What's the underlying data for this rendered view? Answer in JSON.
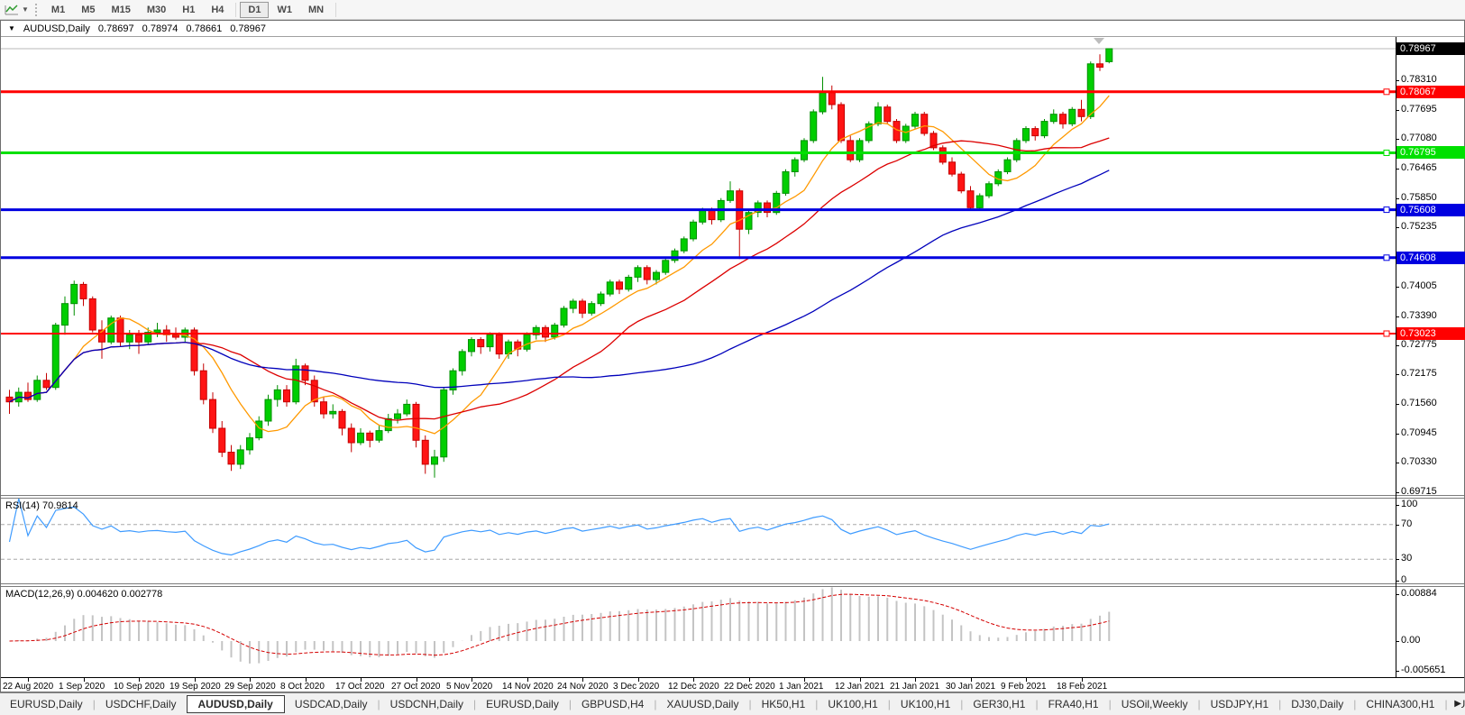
{
  "toolbar": {
    "chart_type_icon": "indicator-chart-icon",
    "dropdown_icon": "chevron-down-icon",
    "timeframes": [
      "M1",
      "M5",
      "M15",
      "M30",
      "H1",
      "H4",
      "D1",
      "W1",
      "MN"
    ],
    "active_timeframe": "D1"
  },
  "chart_header": {
    "collapse_icon": "triangle-down",
    "symbol": "AUDUSD,Daily",
    "open": "0.78697",
    "high": "0.78974",
    "low": "0.78661",
    "close": "0.78967"
  },
  "chart_data": {
    "type": "candlestick",
    "symbol": "AUDUSD",
    "timeframe": "Daily",
    "bull_color": "#00CE00",
    "bear_color": "#FF1414",
    "current_price": "0.78967",
    "current_price_line_color": "#b9b9b9",
    "price_range": {
      "top": 0.79211,
      "bottom": 0.6962
    },
    "y_ticks": [
      "0.78310",
      "0.77695",
      "0.77080",
      "0.76465",
      "0.75850",
      "0.75235",
      "0.74005",
      "0.73390",
      "0.72775",
      "0.72175",
      "0.71560",
      "0.70945",
      "0.70330",
      "0.69715"
    ],
    "levels": [
      {
        "label": "0.78067",
        "price": 0.78067,
        "color": "#FF0000",
        "width": 3
      },
      {
        "label": "0.76795",
        "price": 0.76795,
        "color": "#00E000",
        "width": 3
      },
      {
        "label": "0.75608",
        "price": 0.75608,
        "color": "#0000E0",
        "width": 3
      },
      {
        "label": "0.74608",
        "price": 0.74608,
        "color": "#0000E0",
        "width": 3
      },
      {
        "label": "0.73023",
        "price": 0.73023,
        "color": "#FF0000",
        "width": 2
      }
    ],
    "moving_averages": [
      {
        "name": "fast-ma",
        "period": 8,
        "color": "#FF9900"
      },
      {
        "name": "mid-ma",
        "period": 21,
        "color": "#DC0000"
      },
      {
        "name": "slow-ma",
        "period": 55,
        "color": "#0000BB"
      }
    ],
    "x_labels": [
      "22 Aug 2020",
      "1 Sep 2020",
      "10 Sep 2020",
      "19 Sep 2020",
      "29 Sep 2020",
      "8 Oct 2020",
      "17 Oct 2020",
      "27 Oct 2020",
      "5 Nov 2020",
      "14 Nov 2020",
      "24 Nov 2020",
      "3 Dec 2020",
      "12 Dec 2020",
      "22 Dec 2020",
      "1 Jan 2021",
      "12 Jan 2021",
      "21 Jan 2021",
      "30 Jan 2021",
      "9 Feb 2021",
      "18 Feb 2021"
    ],
    "ohlc": [
      [
        0.717,
        0.7185,
        0.7135,
        0.716
      ],
      [
        0.716,
        0.719,
        0.715,
        0.718
      ],
      [
        0.718,
        0.72,
        0.716,
        0.7165
      ],
      [
        0.7165,
        0.7215,
        0.716,
        0.7205
      ],
      [
        0.7205,
        0.722,
        0.7185,
        0.719
      ],
      [
        0.719,
        0.7325,
        0.7185,
        0.732
      ],
      [
        0.732,
        0.738,
        0.73,
        0.7365
      ],
      [
        0.7365,
        0.7413,
        0.734,
        0.7405
      ],
      [
        0.7405,
        0.741,
        0.736,
        0.7375
      ],
      [
        0.7375,
        0.738,
        0.7305,
        0.731
      ],
      [
        0.731,
        0.733,
        0.725,
        0.7285
      ],
      [
        0.7285,
        0.734,
        0.728,
        0.7335
      ],
      [
        0.7335,
        0.734,
        0.7275,
        0.7285
      ],
      [
        0.7285,
        0.731,
        0.727,
        0.73
      ],
      [
        0.73,
        0.731,
        0.726,
        0.7285
      ],
      [
        0.7285,
        0.7315,
        0.728,
        0.7305
      ],
      [
        0.7305,
        0.7325,
        0.7295,
        0.731
      ],
      [
        0.731,
        0.732,
        0.7285,
        0.73
      ],
      [
        0.73,
        0.7315,
        0.729,
        0.7295
      ],
      [
        0.7295,
        0.7315,
        0.7285,
        0.731
      ],
      [
        0.731,
        0.7315,
        0.7215,
        0.7225
      ],
      [
        0.7225,
        0.724,
        0.7155,
        0.7165
      ],
      [
        0.7165,
        0.718,
        0.7095,
        0.7105
      ],
      [
        0.7105,
        0.712,
        0.7045,
        0.7055
      ],
      [
        0.7055,
        0.707,
        0.7016,
        0.703
      ],
      [
        0.703,
        0.707,
        0.702,
        0.706
      ],
      [
        0.706,
        0.7095,
        0.705,
        0.7085
      ],
      [
        0.7085,
        0.713,
        0.708,
        0.712
      ],
      [
        0.712,
        0.7175,
        0.711,
        0.7165
      ],
      [
        0.7165,
        0.7195,
        0.715,
        0.7185
      ],
      [
        0.7185,
        0.7195,
        0.715,
        0.716
      ],
      [
        0.716,
        0.725,
        0.7155,
        0.7235
      ],
      [
        0.7235,
        0.724,
        0.7195,
        0.7205
      ],
      [
        0.7205,
        0.7215,
        0.715,
        0.716
      ],
      [
        0.716,
        0.717,
        0.7125,
        0.7135
      ],
      [
        0.7135,
        0.7155,
        0.7125,
        0.714
      ],
      [
        0.714,
        0.7145,
        0.709,
        0.7105
      ],
      [
        0.7105,
        0.7115,
        0.7055,
        0.7075
      ],
      [
        0.7075,
        0.7105,
        0.707,
        0.7095
      ],
      [
        0.7095,
        0.71,
        0.7065,
        0.708
      ],
      [
        0.708,
        0.711,
        0.7075,
        0.71
      ],
      [
        0.71,
        0.7135,
        0.7095,
        0.7125
      ],
      [
        0.7125,
        0.7145,
        0.7115,
        0.7135
      ],
      [
        0.7135,
        0.7165,
        0.713,
        0.7155
      ],
      [
        0.7155,
        0.716,
        0.7065,
        0.708
      ],
      [
        0.708,
        0.709,
        0.701,
        0.703
      ],
      [
        0.703,
        0.706,
        0.7002,
        0.7045
      ],
      [
        0.7045,
        0.719,
        0.7035,
        0.7185
      ],
      [
        0.7185,
        0.723,
        0.7175,
        0.7225
      ],
      [
        0.7225,
        0.727,
        0.7215,
        0.7265
      ],
      [
        0.7265,
        0.7295,
        0.7255,
        0.729
      ],
      [
        0.729,
        0.7295,
        0.726,
        0.7275
      ],
      [
        0.7275,
        0.7305,
        0.7265,
        0.73
      ],
      [
        0.73,
        0.7305,
        0.725,
        0.726
      ],
      [
        0.726,
        0.729,
        0.725,
        0.7285
      ],
      [
        0.7285,
        0.729,
        0.7255,
        0.727
      ],
      [
        0.727,
        0.7305,
        0.7265,
        0.73
      ],
      [
        0.73,
        0.732,
        0.729,
        0.7315
      ],
      [
        0.7315,
        0.732,
        0.7285,
        0.7295
      ],
      [
        0.7295,
        0.7325,
        0.729,
        0.732
      ],
      [
        0.732,
        0.736,
        0.7315,
        0.7355
      ],
      [
        0.7355,
        0.7375,
        0.7345,
        0.737
      ],
      [
        0.737,
        0.7375,
        0.7335,
        0.7345
      ],
      [
        0.7345,
        0.737,
        0.734,
        0.7365
      ],
      [
        0.7365,
        0.739,
        0.736,
        0.7385
      ],
      [
        0.7385,
        0.7415,
        0.738,
        0.741
      ],
      [
        0.741,
        0.7415,
        0.7385,
        0.7395
      ],
      [
        0.7395,
        0.7425,
        0.739,
        0.742
      ],
      [
        0.742,
        0.7445,
        0.741,
        0.744
      ],
      [
        0.744,
        0.7445,
        0.7405,
        0.7415
      ],
      [
        0.7415,
        0.7435,
        0.7405,
        0.743
      ],
      [
        0.743,
        0.746,
        0.7425,
        0.7455
      ],
      [
        0.7455,
        0.748,
        0.745,
        0.7475
      ],
      [
        0.7475,
        0.7505,
        0.747,
        0.75
      ],
      [
        0.75,
        0.754,
        0.7495,
        0.7535
      ],
      [
        0.7535,
        0.7565,
        0.753,
        0.756
      ],
      [
        0.756,
        0.7565,
        0.753,
        0.754
      ],
      [
        0.754,
        0.7585,
        0.7535,
        0.758
      ],
      [
        0.758,
        0.762,
        0.7575,
        0.76
      ],
      [
        0.76,
        0.7605,
        0.7458,
        0.752
      ],
      [
        0.752,
        0.756,
        0.751,
        0.7555
      ],
      [
        0.7555,
        0.758,
        0.7545,
        0.7575
      ],
      [
        0.7575,
        0.758,
        0.7545,
        0.7555
      ],
      [
        0.7555,
        0.76,
        0.755,
        0.7595
      ],
      [
        0.7595,
        0.7645,
        0.759,
        0.764
      ],
      [
        0.764,
        0.767,
        0.763,
        0.7665
      ],
      [
        0.7665,
        0.771,
        0.766,
        0.7705
      ],
      [
        0.7705,
        0.777,
        0.77,
        0.7765
      ],
      [
        0.7765,
        0.7838,
        0.776,
        0.7805
      ],
      [
        0.7805,
        0.782,
        0.777,
        0.778
      ],
      [
        0.778,
        0.7785,
        0.77,
        0.7705
      ],
      [
        0.7705,
        0.7715,
        0.766,
        0.7665
      ],
      [
        0.7665,
        0.771,
        0.766,
        0.7705
      ],
      [
        0.7705,
        0.7745,
        0.77,
        0.774
      ],
      [
        0.774,
        0.7785,
        0.7735,
        0.7775
      ],
      [
        0.7775,
        0.778,
        0.774,
        0.7745
      ],
      [
        0.7745,
        0.775,
        0.77,
        0.7705
      ],
      [
        0.7705,
        0.774,
        0.77,
        0.7735
      ],
      [
        0.7735,
        0.7765,
        0.773,
        0.776
      ],
      [
        0.776,
        0.7765,
        0.7715,
        0.772
      ],
      [
        0.772,
        0.7725,
        0.7685,
        0.769
      ],
      [
        0.769,
        0.7695,
        0.7655,
        0.766
      ],
      [
        0.766,
        0.767,
        0.763,
        0.7635
      ],
      [
        0.7635,
        0.764,
        0.7595,
        0.76
      ],
      [
        0.76,
        0.761,
        0.7562,
        0.7565
      ],
      [
        0.7565,
        0.7595,
        0.756,
        0.759
      ],
      [
        0.759,
        0.762,
        0.7585,
        0.7615
      ],
      [
        0.7615,
        0.7645,
        0.761,
        0.764
      ],
      [
        0.764,
        0.767,
        0.7635,
        0.7665
      ],
      [
        0.7665,
        0.771,
        0.766,
        0.7705
      ],
      [
        0.7705,
        0.7735,
        0.77,
        0.773
      ],
      [
        0.773,
        0.7735,
        0.7705,
        0.7715
      ],
      [
        0.7715,
        0.775,
        0.771,
        0.7745
      ],
      [
        0.7745,
        0.777,
        0.774,
        0.776
      ],
      [
        0.776,
        0.7765,
        0.773,
        0.774
      ],
      [
        0.774,
        0.7775,
        0.7735,
        0.777
      ],
      [
        0.777,
        0.779,
        0.7745,
        0.7755
      ],
      [
        0.7755,
        0.787,
        0.775,
        0.7865
      ],
      [
        0.7865,
        0.7885,
        0.785,
        0.7858
      ],
      [
        0.78697,
        0.78974,
        0.78661,
        0.78967
      ]
    ]
  },
  "rsi": {
    "label": "RSI(14) 70.9814",
    "period": 14,
    "line_color": "#3E9BFF",
    "level_lines": [
      70,
      30
    ],
    "ticks": [
      "100",
      "70",
      "30",
      "0"
    ]
  },
  "macd": {
    "label": "MACD(12,26,9) 0.004620 0.002778",
    "fast": 12,
    "slow": 26,
    "signal": 9,
    "histogram_color": "#c4c4c4",
    "signal_color": "#d40000",
    "ticks": [
      {
        "label": "0.00884",
        "value": 0.00884
      },
      {
        "label": "0.00",
        "value": 0
      },
      {
        "label": "-0.005651",
        "value": -0.005651
      }
    ]
  },
  "tabs": {
    "active_index": 2,
    "items": [
      "EURUSD,Daily",
      "USDCHF,Daily",
      "AUDUSD,Daily",
      "USDCAD,Daily",
      "USDCNH,Daily",
      "EURUSD,Daily",
      "GBPUSD,H4",
      "XAUUSD,Daily",
      "HK50,H1",
      "UK100,H1",
      "UK100,H1",
      "GER30,H1",
      "FRA40,H1",
      "USOil,Weekly",
      "USDJPY,H1",
      "DJ30,Daily",
      "CHINA300,H1",
      "U"
    ],
    "scroll_right_icon": "arrow-right"
  }
}
